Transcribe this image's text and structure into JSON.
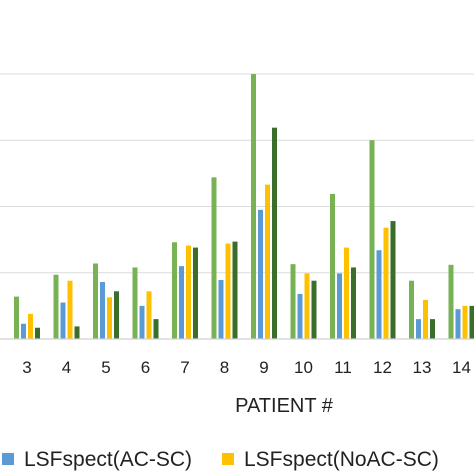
{
  "chart_data": {
    "type": "bar",
    "xlabel": "PATIENT #",
    "ylabel": "",
    "title": "",
    "grid": true,
    "legend_position": "bottom",
    "ylim": [
      0,
      4
    ],
    "categories": [
      "3",
      "4",
      "5",
      "6",
      "7",
      "8",
      "9",
      "10",
      "11",
      "12",
      "13",
      "14"
    ],
    "series": [
      {
        "name": "",
        "color": "#77b255",
        "values": [
          0.64,
          0.97,
          1.14,
          1.08,
          1.46,
          2.44,
          4.0,
          1.13,
          2.19,
          3.0,
          0.88,
          1.12
        ]
      },
      {
        "name": "LSFspect(AC-SC)",
        "color": "#5b9bd5",
        "values": [
          0.23,
          0.55,
          0.86,
          0.5,
          1.1,
          0.89,
          1.95,
          0.68,
          0.99,
          1.34,
          0.3,
          0.45
        ]
      },
      {
        "name": "LSFspect(NoAC-SC)",
        "color": "#ffc000",
        "values": [
          0.38,
          0.88,
          0.63,
          0.72,
          1.41,
          1.44,
          2.33,
          0.99,
          1.38,
          1.68,
          0.59,
          0.5
        ]
      },
      {
        "name": "",
        "color": "#3a6e2a",
        "values": [
          0.17,
          0.19,
          0.72,
          0.3,
          1.38,
          1.47,
          3.19,
          0.88,
          1.08,
          1.78,
          0.3,
          0.5
        ]
      }
    ]
  }
}
